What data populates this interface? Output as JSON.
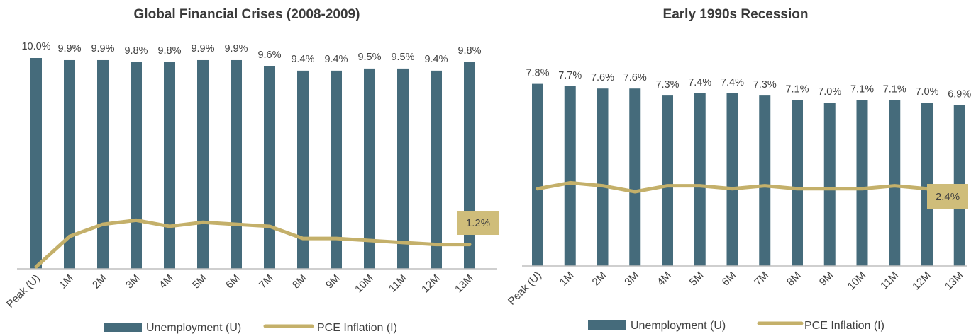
{
  "colors": {
    "bar": "#456b7b",
    "line": "#c4b06a",
    "callout": "#cfbd7a",
    "axis": "#bfbfbf",
    "text": "#404040"
  },
  "chart_data": [
    {
      "type": "bar",
      "title": "Global Financial Crises (2008-2009)",
      "categories": [
        "Peak (U)",
        "1M",
        "2M",
        "3M",
        "4M",
        "5M",
        "6M",
        "7M",
        "8M",
        "9M",
        "10M",
        "11M",
        "12M",
        "13M"
      ],
      "series": [
        {
          "name": "Unemployment (U)",
          "type": "bar",
          "values": [
            10.0,
            9.9,
            9.9,
            9.8,
            9.8,
            9.9,
            9.9,
            9.6,
            9.4,
            9.4,
            9.5,
            9.5,
            9.4,
            9.8
          ],
          "labels": [
            "10.0%",
            "9.9%",
            "9.9%",
            "9.8%",
            "9.8%",
            "9.9%",
            "9.9%",
            "9.6%",
            "9.4%",
            "9.4%",
            "9.5%",
            "9.5%",
            "9.4%",
            "9.8%"
          ]
        },
        {
          "name": "PCE Inflation (I)",
          "type": "line",
          "values": [
            0.1,
            1.6,
            2.2,
            2.4,
            2.1,
            2.3,
            2.2,
            2.1,
            1.5,
            1.5,
            1.4,
            1.3,
            1.2,
            1.2
          ]
        }
      ],
      "callout": "1.2%",
      "legend_position": "bottom"
    },
    {
      "type": "bar",
      "title": "Early 1990s Recession",
      "categories": [
        "Peak (U)",
        "1M",
        "2M",
        "3M",
        "4M",
        "5M",
        "6M",
        "7M",
        "8M",
        "9M",
        "10M",
        "11M",
        "12M",
        "13M"
      ],
      "series": [
        {
          "name": "Unemployment (U)",
          "type": "bar",
          "values": [
            7.8,
            7.7,
            7.6,
            7.6,
            7.3,
            7.4,
            7.4,
            7.3,
            7.1,
            7.0,
            7.1,
            7.1,
            7.0,
            6.9
          ],
          "labels": [
            "7.8%",
            "7.7%",
            "7.6%",
            "7.6%",
            "7.3%",
            "7.4%",
            "7.4%",
            "7.3%",
            "7.1%",
            "7.0%",
            "7.1%",
            "7.1%",
            "7.0%",
            "6.9%"
          ]
        },
        {
          "name": "PCE Inflation (I)",
          "type": "line",
          "values": [
            2.6,
            2.8,
            2.7,
            2.5,
            2.7,
            2.7,
            2.6,
            2.7,
            2.6,
            2.6,
            2.6,
            2.7,
            2.6,
            2.4
          ]
        }
      ],
      "callout": "2.4%",
      "legend_position": "bottom"
    }
  ]
}
